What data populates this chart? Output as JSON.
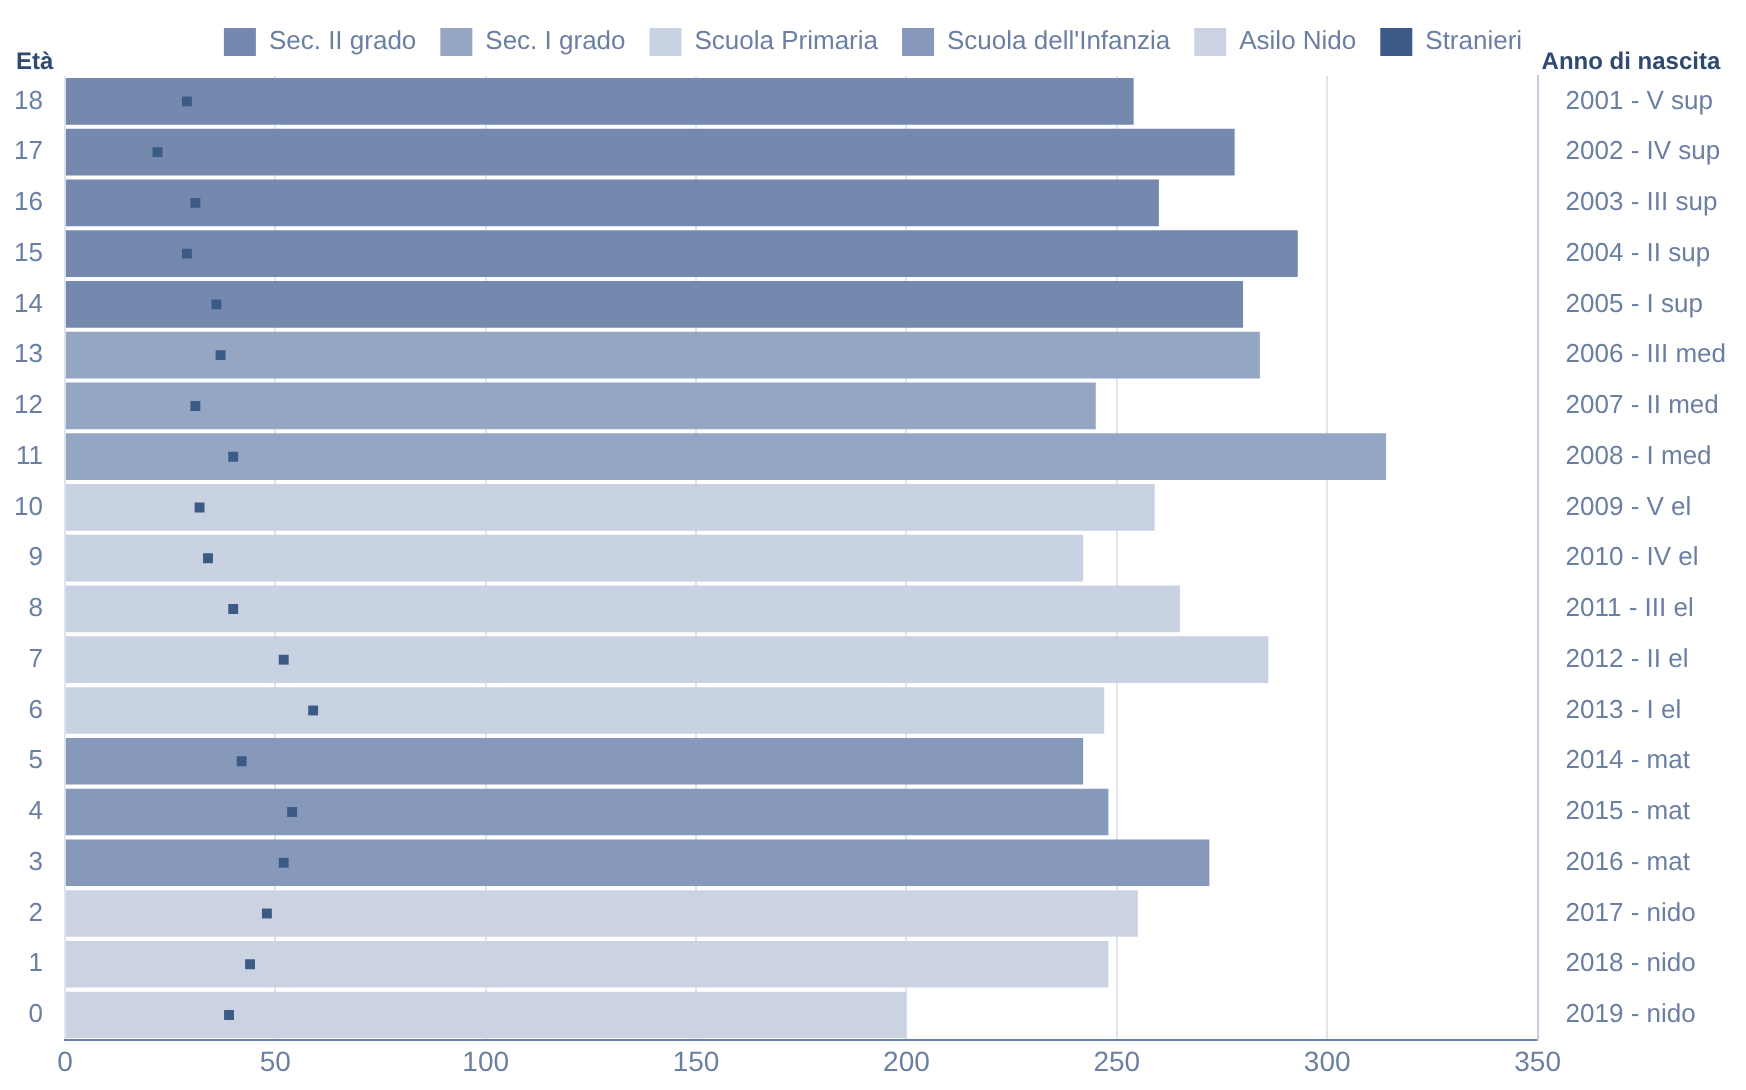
{
  "chart_data": {
    "type": "bar",
    "orientation": "horizontal",
    "ylabel": "Età",
    "y2label": "Anno di nascita",
    "categories": [
      "18",
      "17",
      "16",
      "15",
      "14",
      "13",
      "12",
      "11",
      "10",
      "9",
      "8",
      "7",
      "6",
      "5",
      "4",
      "3",
      "2",
      "1",
      "0"
    ],
    "y2_categories": [
      "2001 - V sup",
      "2002 - IV sup",
      "2003 - III sup",
      "2004 - II sup",
      "2005 - I sup",
      "2006 - III med",
      "2007 - II med",
      "2008 - I med",
      "2009 - V el",
      "2010 - IV el",
      "2011 - III el",
      "2012 - II el",
      "2013 - I el",
      "2014 - mat",
      "2015 - mat",
      "2016 - mat",
      "2017 - nido",
      "2018 - nido",
      "2019 - nido"
    ],
    "series": [
      {
        "name": "Sec. II grado",
        "color": "#7489ad",
        "values": [
          254,
          278,
          260,
          293,
          280,
          null,
          null,
          null,
          null,
          null,
          null,
          null,
          null,
          null,
          null,
          null,
          null,
          null,
          null
        ]
      },
      {
        "name": "Sec. I grado",
        "color": "#94a6c4",
        "values": [
          null,
          null,
          null,
          null,
          null,
          284,
          245,
          314,
          null,
          null,
          null,
          null,
          null,
          null,
          null,
          null,
          null,
          null,
          null
        ]
      },
      {
        "name": "Scuola Primaria",
        "color": "#c9d2e2",
        "values": [
          null,
          null,
          null,
          null,
          null,
          null,
          null,
          null,
          259,
          242,
          265,
          286,
          247,
          null,
          null,
          null,
          null,
          null,
          null
        ]
      },
      {
        "name": "Scuola dell'Infanzia",
        "color": "#8799ba",
        "values": [
          null,
          null,
          null,
          null,
          null,
          null,
          null,
          null,
          null,
          null,
          null,
          null,
          null,
          242,
          248,
          272,
          null,
          null,
          null
        ]
      },
      {
        "name": "Asilo Nido",
        "color": "#cbd3e3",
        "values": [
          null,
          null,
          null,
          null,
          null,
          null,
          null,
          null,
          null,
          null,
          null,
          null,
          null,
          null,
          null,
          null,
          255,
          248,
          200
        ]
      },
      {
        "name": "Stranieri",
        "color": "#3b5a85",
        "type": "scatter",
        "marker": "square",
        "values": [
          29,
          22,
          31,
          29,
          36,
          37,
          31,
          40,
          32,
          34,
          40,
          52,
          59,
          42,
          54,
          52,
          48,
          44,
          39
        ]
      }
    ],
    "xlim": [
      0,
      350
    ],
    "xticks": [
      0,
      50,
      100,
      150,
      200,
      250,
      300,
      350
    ],
    "grid": "x",
    "legend": "top"
  }
}
